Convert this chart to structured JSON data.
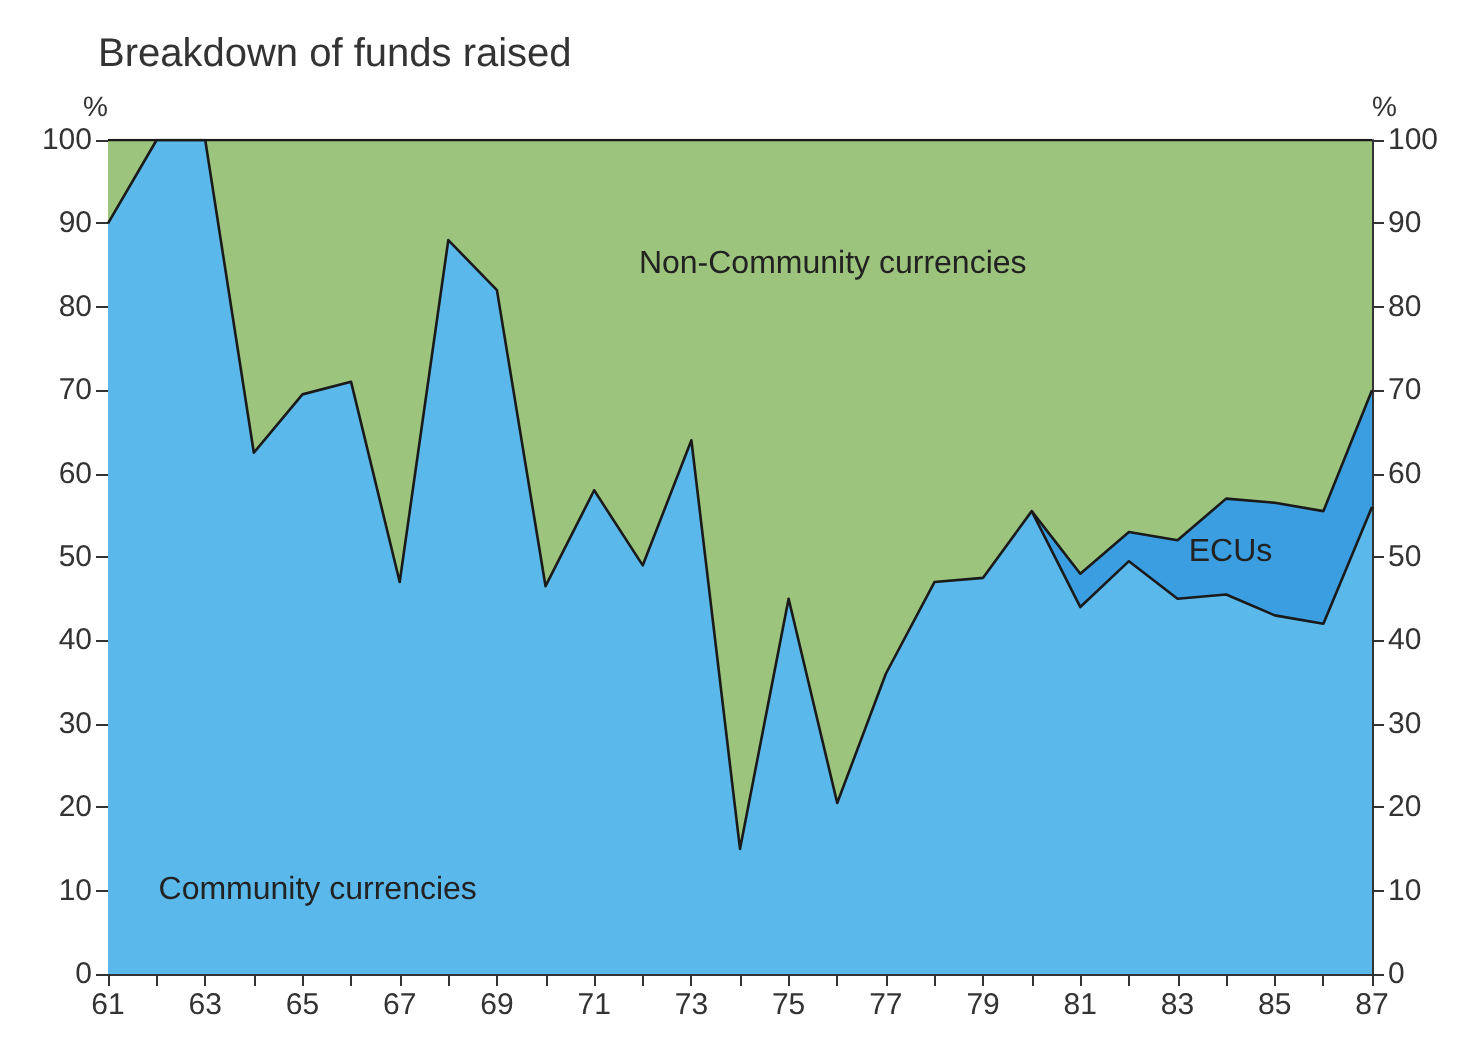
{
  "chart_data": {
    "type": "area",
    "stacked": true,
    "title": "Breakdown of funds raised",
    "ylabel": "%",
    "y2label": "%",
    "categories": [
      "61",
      null,
      "63",
      null,
      "65",
      null,
      "67",
      null,
      "69",
      null,
      "71",
      null,
      "73",
      null,
      "75",
      null,
      "77",
      null,
      "79",
      null,
      "81",
      null,
      "83",
      null,
      "85",
      null,
      "87"
    ],
    "series": [
      {
        "name": "Community currencies",
        "color": "#5bb8ea",
        "values": [
          90,
          100,
          100,
          62.5,
          69.5,
          71,
          47,
          88,
          82,
          46.5,
          58,
          49,
          64,
          15,
          45,
          20.5,
          36,
          47,
          47.5,
          55.5,
          44,
          49.5,
          45,
          45.5,
          43,
          42,
          56
        ]
      },
      {
        "name": "ECUs",
        "color": "#3a9ee0",
        "values": [
          null,
          null,
          null,
          null,
          null,
          null,
          null,
          null,
          null,
          null,
          null,
          null,
          null,
          null,
          null,
          null,
          null,
          null,
          null,
          0,
          4,
          3.5,
          7,
          11.5,
          13.5,
          13.5,
          14
        ]
      },
      {
        "name": "Non-Community currencies",
        "color": "#9cc47c",
        "values": [
          10,
          0,
          0,
          37.5,
          30.5,
          29,
          53,
          12,
          18,
          53.5,
          42,
          51,
          36,
          85,
          55,
          79.5,
          64,
          53,
          52.5,
          44.5,
          52,
          47,
          48,
          43,
          43.5,
          44.5,
          30
        ]
      }
    ],
    "ylim": [
      0,
      100
    ],
    "yticks": [
      0,
      10,
      20,
      30,
      40,
      50,
      60,
      70,
      80,
      90,
      100
    ],
    "y2lim": [
      0,
      100
    ],
    "y2ticks": [
      0,
      10,
      20,
      30,
      40,
      50,
      60,
      70,
      80,
      90,
      100
    ],
    "legend": false
  }
}
